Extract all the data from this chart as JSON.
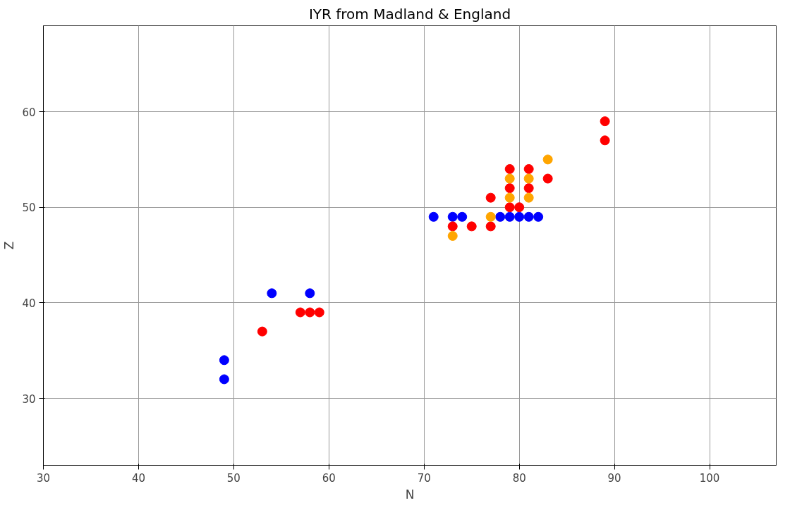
{
  "chart_data": {
    "type": "scatter",
    "title": "IYR from Madland & England",
    "xlabel": "N",
    "ylabel": "Z",
    "xlim": [
      30,
      107
    ],
    "ylim": [
      23,
      69
    ],
    "xticks": [
      30,
      40,
      50,
      60,
      70,
      80,
      90,
      100
    ],
    "yticks": [
      30,
      40,
      50,
      60
    ],
    "grid": true,
    "marker": "circle",
    "series": [
      {
        "color": "#0000ff",
        "x": [
          49,
          49,
          54,
          58,
          71,
          73,
          74,
          78,
          79,
          80,
          81,
          82
        ],
        "values": [
          34,
          32,
          41,
          41,
          49,
          49,
          49,
          49,
          49,
          49,
          49,
          49
        ]
      },
      {
        "color": "#ff0000",
        "x": [
          53,
          57,
          58,
          59,
          73,
          75,
          77,
          77,
          79,
          80,
          79,
          79,
          81,
          81,
          83,
          89,
          89
        ],
        "values": [
          37,
          39,
          39,
          39,
          48,
          48,
          48,
          51,
          50,
          50,
          52,
          54,
          52,
          54,
          53,
          57,
          59
        ]
      },
      {
        "color": "#ffa500",
        "x": [
          73,
          77,
          79,
          79,
          81,
          81,
          83
        ],
        "values": [
          47,
          49,
          51,
          53,
          51,
          53,
          55
        ]
      }
    ]
  }
}
